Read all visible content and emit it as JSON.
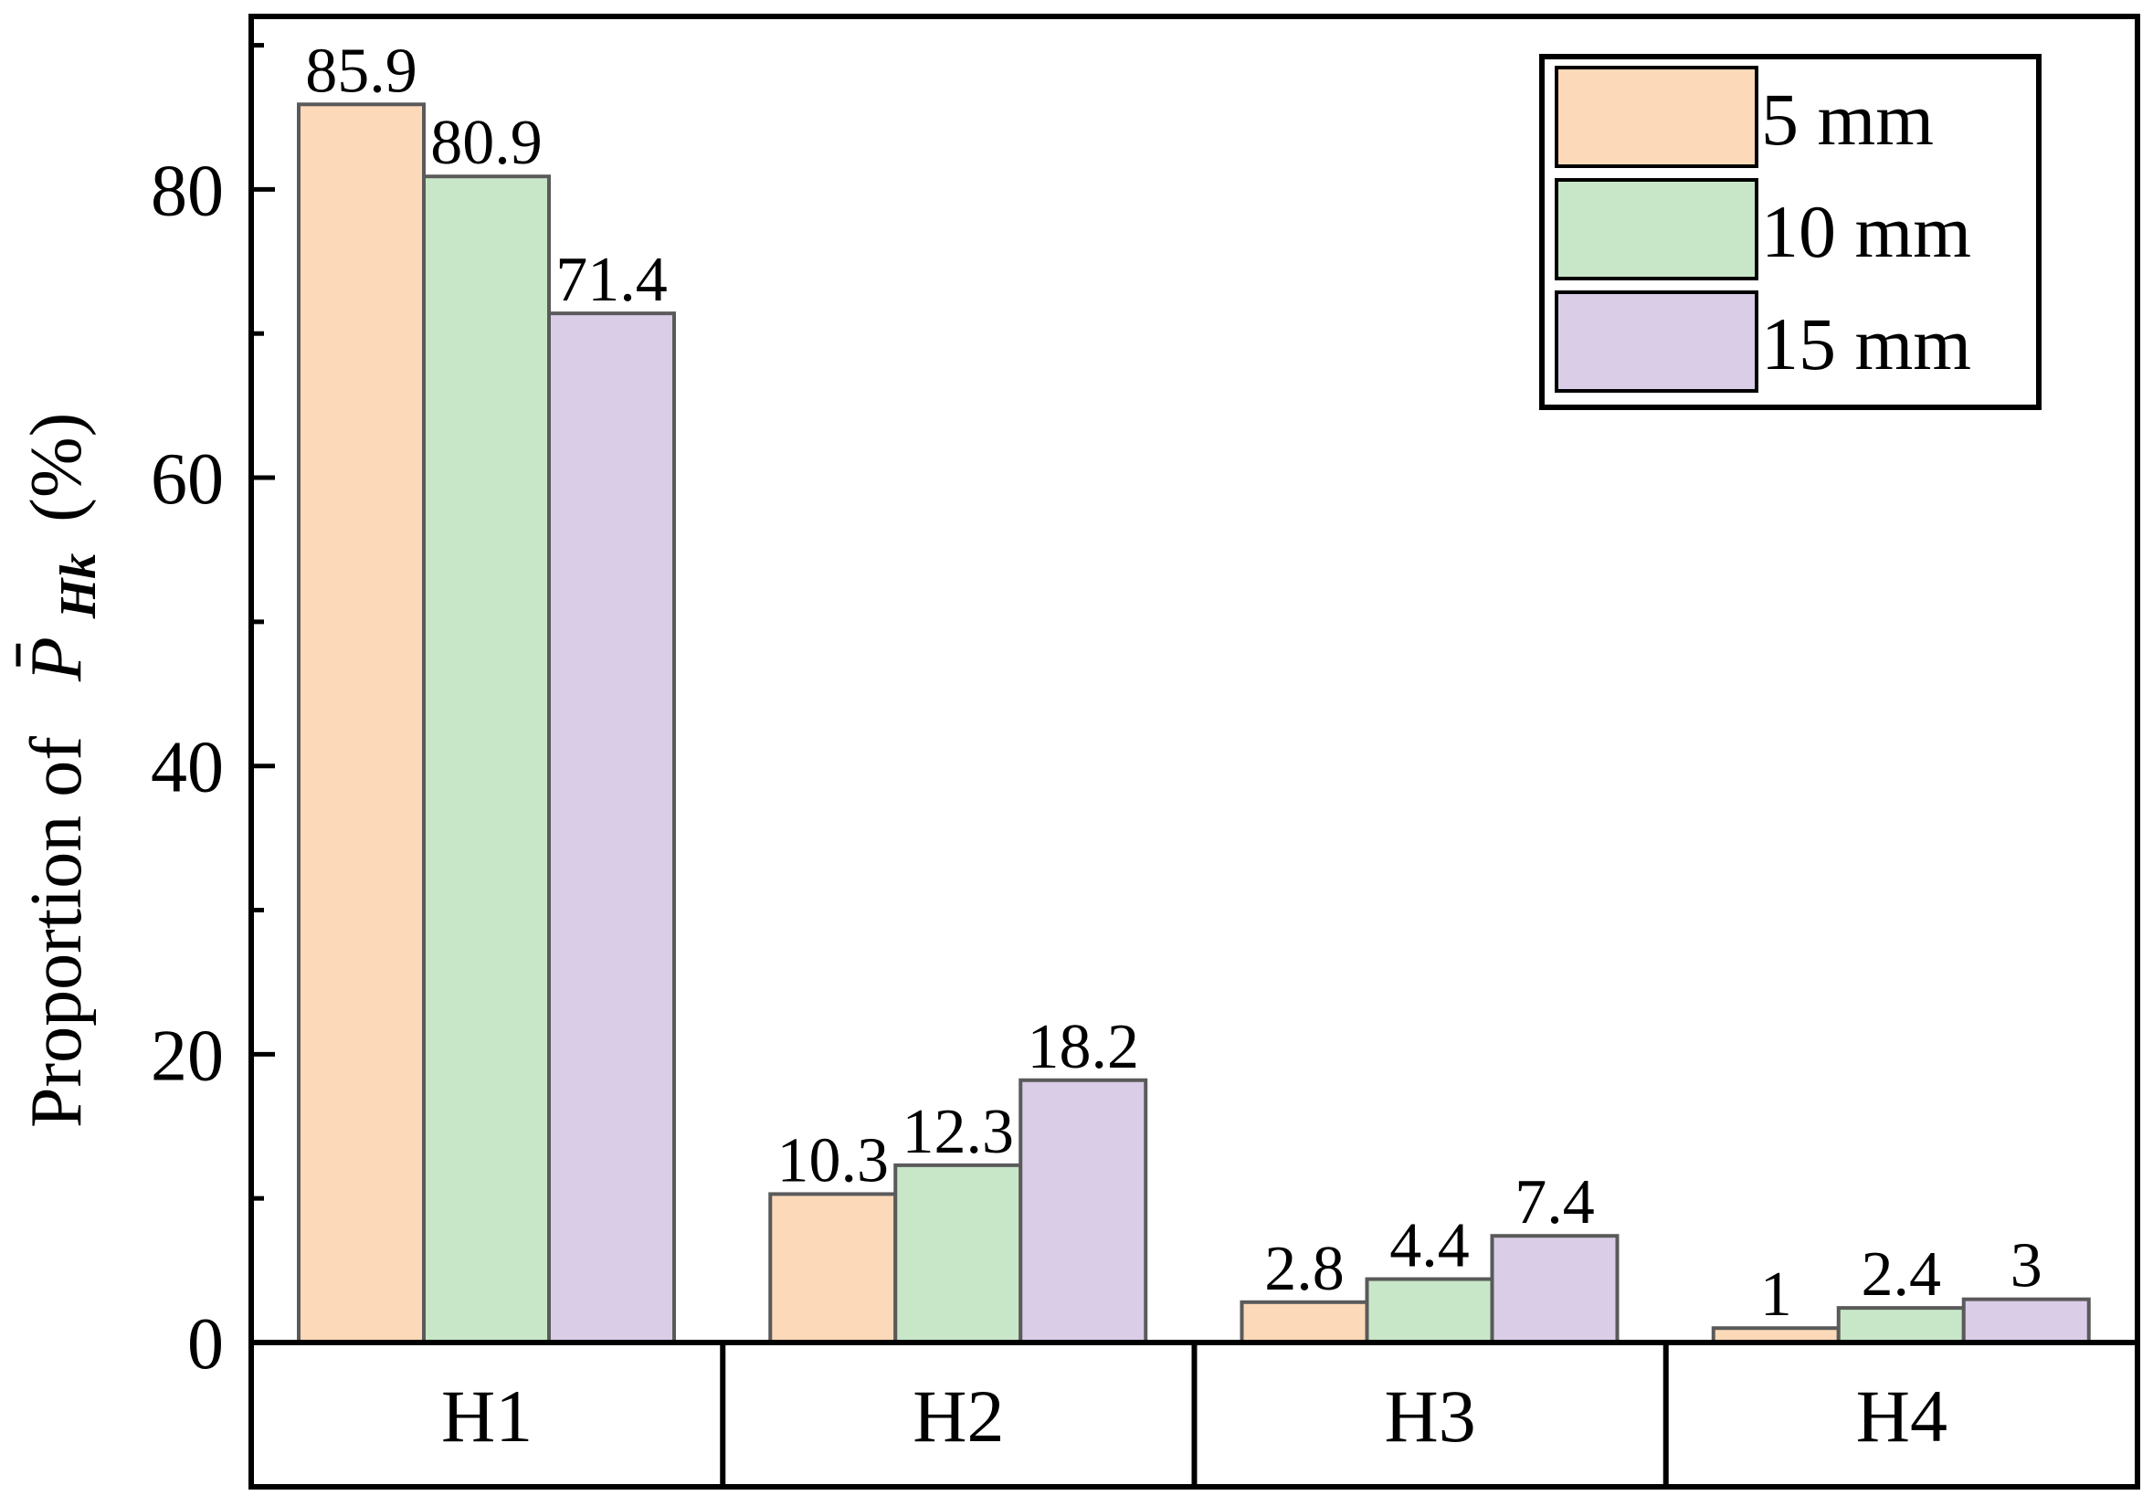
{
  "chart_data": {
    "type": "bar",
    "categories": [
      "H1",
      "H2",
      "H3",
      "H4"
    ],
    "series": [
      {
        "name": "5 mm",
        "values": [
          85.9,
          10.3,
          2.8,
          1
        ],
        "labels": [
          "85.9",
          "10.3",
          "2.8",
          "1"
        ],
        "color": "#fcd9b9"
      },
      {
        "name": "10 mm",
        "values": [
          80.9,
          12.3,
          4.4,
          2.4
        ],
        "labels": [
          "80.9",
          "12.3",
          "4.4",
          "2.4"
        ],
        "color": "#c8e7c8"
      },
      {
        "name": "15 mm",
        "values": [
          71.4,
          18.2,
          7.4,
          3
        ],
        "labels": [
          "71.4",
          "18.2",
          "7.4",
          "3"
        ],
        "color": "#dacde7"
      }
    ],
    "ylabel_prefix": "Proportion of",
    "ylabel_symbol": "P",
    "ylabel_subscript": "Hk",
    "ylabel_unit": "(%)",
    "ylim": [
      0,
      92
    ],
    "yticks": [
      0,
      20,
      40,
      60,
      80
    ],
    "ytick_labels": [
      "0",
      "20",
      "40",
      "60",
      "80"
    ],
    "legend_position": "top-right",
    "grid": false
  }
}
